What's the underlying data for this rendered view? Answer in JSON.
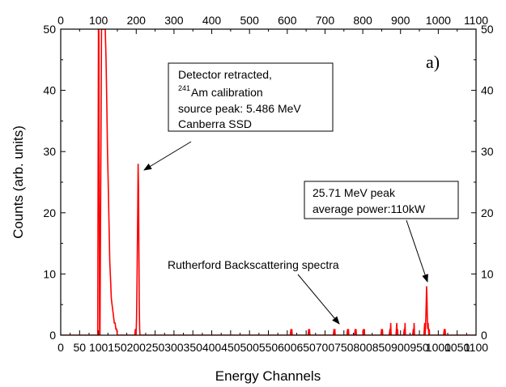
{
  "chart_data": {
    "type": "line",
    "title": "",
    "panel_label": "a)",
    "xlabel": "Energy Channels",
    "ylabel": "Counts (arb. units)",
    "xlim": [
      0,
      1100
    ],
    "ylim": [
      0,
      50
    ],
    "x_ticks": [
      0,
      50,
      100,
      150,
      200,
      250,
      300,
      350,
      400,
      450,
      500,
      550,
      600,
      650,
      700,
      750,
      800,
      850,
      900,
      950,
      1000,
      1050,
      1100
    ],
    "x_ticks_top": [
      0,
      100,
      200,
      300,
      400,
      500,
      600,
      700,
      800,
      900,
      1000,
      1100
    ],
    "y_ticks": [
      0,
      10,
      20,
      30,
      40,
      50
    ],
    "series": [
      {
        "color": "#ff0000",
        "x": [
          0,
          98,
          100,
          101,
          103,
          104,
          108,
          110,
          112,
          114,
          116,
          118,
          120,
          122,
          124,
          126,
          128,
          130,
          132,
          134,
          136,
          138,
          140,
          142,
          144,
          146,
          148,
          150,
          152,
          154,
          196,
          198,
          199,
          200,
          201,
          202,
          203,
          204,
          205,
          206,
          207,
          208,
          209,
          210,
          211,
          212,
          214,
          608,
          610,
          611,
          612,
          613,
          655,
          657,
          658,
          659,
          660,
          722,
          724,
          725,
          726,
          727,
          758,
          760,
          761,
          762,
          763,
          778,
          780,
          781,
          782,
          783,
          800,
          802,
          803,
          804,
          805,
          848,
          850,
          851,
          852,
          853,
          870,
          872,
          873,
          874,
          875,
          888,
          890,
          891,
          892,
          893,
          908,
          910,
          911,
          912,
          913,
          932,
          934,
          935,
          936,
          937,
          962,
          963,
          964,
          965,
          966,
          967,
          968,
          969,
          970,
          971,
          972,
          973,
          974,
          975,
          976,
          977,
          978,
          1014,
          1016,
          1017,
          1018,
          1019,
          1100
        ],
        "y": [
          0,
          0,
          50,
          50,
          0,
          0,
          50,
          50,
          50,
          50,
          50,
          50,
          45,
          38,
          30,
          24,
          18,
          12,
          9,
          6,
          5,
          4,
          3,
          2,
          2,
          1,
          1,
          0,
          0,
          0,
          0,
          1,
          0,
          1,
          3,
          8,
          15,
          20,
          28,
          24,
          15,
          5,
          1,
          0,
          0,
          0,
          0,
          0,
          1,
          0,
          1,
          0,
          0,
          1,
          0,
          1,
          0,
          0,
          1,
          0,
          1,
          0,
          0,
          1,
          0,
          1,
          0,
          0,
          1,
          0,
          1,
          0,
          0,
          1,
          0,
          1,
          0,
          0,
          1,
          0,
          1,
          0,
          0,
          1,
          0,
          2,
          0,
          0,
          2,
          0,
          1,
          0,
          0,
          1,
          0,
          2,
          0,
          0,
          1,
          0,
          2,
          0,
          0,
          1,
          2,
          0,
          1,
          3,
          5,
          8,
          6,
          3,
          1,
          2,
          1,
          0,
          1,
          0,
          0,
          0,
          1,
          0,
          1,
          0,
          0
        ]
      }
    ],
    "annotations": {
      "calib_line1": "Detector retracted,",
      "calib_sup": "241",
      "calib_line2": "Am calibration",
      "calib_line3": "source peak: 5.486 MeV",
      "calib_line4": "Canberra SSD",
      "peak_line1": "25.71 MeV peak",
      "peak_line2": "average power:110kW",
      "rbs": "Rutherford Backscattering spectra"
    }
  }
}
